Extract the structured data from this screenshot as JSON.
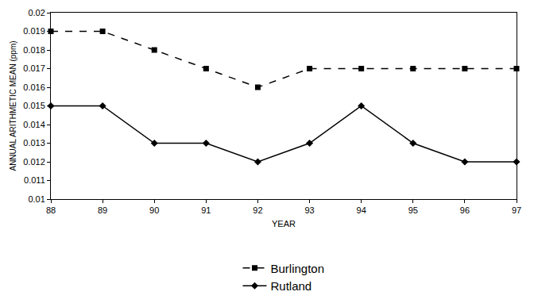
{
  "chart_data": {
    "type": "line",
    "x_label": "YEAR",
    "y_label": "ANNUAL ARITHMETIC MEAN (ppm)",
    "x": [
      88,
      89,
      90,
      91,
      92,
      93,
      94,
      95,
      96,
      97
    ],
    "series": [
      {
        "name": "Burlington",
        "color": "#000000",
        "marker": "square",
        "line_style": "dash",
        "values": [
          0.019,
          0.019,
          0.018,
          0.017,
          0.016,
          0.017,
          0.017,
          0.017,
          0.017,
          0.017
        ]
      },
      {
        "name": "Rutland",
        "color": "#000000",
        "marker": "diamond",
        "line_style": "solid",
        "values": [
          0.015,
          0.015,
          0.013,
          0.013,
          0.012,
          0.013,
          0.015,
          0.013,
          0.012,
          0.012
        ]
      }
    ],
    "xlim": [
      88,
      97
    ],
    "xticks": [
      88,
      89,
      90,
      91,
      92,
      93,
      94,
      95,
      96,
      97
    ],
    "ylim": [
      0.01,
      0.02
    ],
    "yticks": [
      0.01,
      0.011,
      0.012,
      0.013,
      0.014,
      0.015,
      0.016,
      0.017,
      0.018,
      0.019,
      0.02
    ],
    "grid": false,
    "legend": "bottom"
  }
}
